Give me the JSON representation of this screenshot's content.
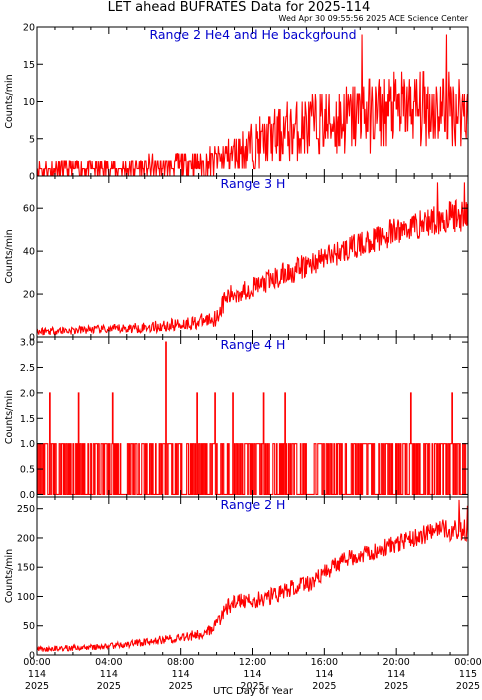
{
  "header": {
    "title": "LET ahead BUFRATES Data for 2025-114",
    "timestamp": "Wed Apr 30 09:55:56 2025 ACE Science Center"
  },
  "colors": {
    "trace": "#ff0000",
    "panel_label": "#0000cc",
    "axes": "#000000"
  },
  "x_axis": {
    "label": "UTC Day of Year",
    "ticks": [
      {
        "time": "00:00",
        "doy": "114",
        "year": "2025",
        "hour": 0
      },
      {
        "time": "04:00",
        "doy": "114",
        "year": "2025",
        "hour": 4
      },
      {
        "time": "08:00",
        "doy": "114",
        "year": "2025",
        "hour": 8
      },
      {
        "time": "12:00",
        "doy": "114",
        "year": "2025",
        "hour": 12
      },
      {
        "time": "16:00",
        "doy": "114",
        "year": "2025",
        "hour": 16
      },
      {
        "time": "20:00",
        "doy": "114",
        "year": "2025",
        "hour": 20
      },
      {
        "time": "00:00",
        "doy": "115",
        "year": "2025",
        "hour": 24
      }
    ]
  },
  "chart_data": [
    {
      "type": "line",
      "panel_label": "Range 2 He4 and He background",
      "ylabel": "Counts/min",
      "ylim": [
        0,
        20
      ],
      "y_ticks": [
        "0",
        "5",
        "10",
        "15",
        "20"
      ],
      "y_tick_values": [
        0,
        5,
        10,
        15,
        20
      ],
      "xlim_hours": [
        0,
        24
      ],
      "series": [
        {
          "x_hours": [
            0,
            1,
            2,
            3,
            4,
            5,
            6,
            7,
            8,
            9,
            10,
            11,
            12,
            13,
            14,
            15,
            16,
            17,
            18,
            19,
            20,
            21,
            22,
            23,
            24
          ],
          "level": [
            0.8,
            0.9,
            0.9,
            1.0,
            1.0,
            1.0,
            1.2,
            1.3,
            1.5,
            1.6,
            2.0,
            3.0,
            4.0,
            5.0,
            6.0,
            6.5,
            7.0,
            7.5,
            8.0,
            8.5,
            9.0,
            9.0,
            9.0,
            9.0,
            9.0
          ],
          "spread": [
            1.2,
            1.2,
            1.2,
            1.2,
            1.2,
            1.2,
            1.3,
            1.3,
            1.5,
            1.6,
            2.0,
            2.5,
            3.0,
            3.5,
            4.0,
            4.5,
            4.5,
            5.0,
            5.0,
            5.0,
            5.0,
            5.0,
            5.0,
            5.0,
            5.0
          ],
          "integer": true,
          "peaks": [
            [
              18.1,
              19
            ],
            [
              22.8,
              19
            ]
          ]
        }
      ]
    },
    {
      "type": "line",
      "panel_label": "Range 3 H",
      "ylabel": "Counts/min",
      "ylim": [
        0,
        75
      ],
      "y_ticks": [
        "0",
        "20",
        "40",
        "60"
      ],
      "y_tick_values": [
        0,
        20,
        40,
        60
      ],
      "xlim_hours": [
        0,
        24
      ],
      "series": [
        {
          "x_hours": [
            0,
            1,
            2,
            3,
            4,
            5,
            6,
            7,
            8,
            9,
            10,
            10.5,
            11,
            12,
            13,
            14,
            15,
            16,
            17,
            18,
            19,
            20,
            21,
            22,
            23,
            24
          ],
          "level": [
            2.5,
            3,
            3,
            3.5,
            3.5,
            4,
            4.5,
            5,
            6,
            7,
            9,
            18,
            20,
            23,
            26,
            30,
            33,
            37,
            40,
            43,
            46,
            49,
            52,
            54,
            56,
            57
          ],
          "spread": [
            2,
            2,
            2,
            2,
            2,
            2.5,
            2.5,
            3,
            3,
            3.5,
            4,
            5,
            5,
            5,
            6,
            6,
            6,
            6,
            6,
            6,
            6,
            7,
            7,
            7,
            8,
            8
          ],
          "integer": false,
          "peaks": [
            [
              22.3,
              72
            ],
            [
              23.8,
              72
            ]
          ]
        }
      ]
    },
    {
      "type": "line",
      "panel_label": "Range 4 H",
      "ylabel": "Counts/min",
      "ylim": [
        -0.05,
        3.1
      ],
      "y_ticks": [
        "0.0",
        "0.5",
        "1.0",
        "1.5",
        "2.0",
        "2.5",
        "3.0"
      ],
      "y_tick_values": [
        0,
        0.5,
        1.0,
        1.5,
        2.0,
        2.5,
        3.0
      ],
      "xlim_hours": [
        0,
        24
      ],
      "series": [
        {
          "kind": "binary",
          "ones_fraction": 0.45,
          "spikes": [
            [
              0.7,
              2
            ],
            [
              2.3,
              2
            ],
            [
              4.2,
              2
            ],
            [
              7.15,
              3
            ],
            [
              8.9,
              2
            ],
            [
              9.9,
              2
            ],
            [
              10.9,
              2
            ],
            [
              12.6,
              2
            ],
            [
              13.8,
              2
            ],
            [
              20.8,
              2
            ],
            [
              23.1,
              2
            ]
          ]
        }
      ]
    },
    {
      "type": "line",
      "panel_label": "Range 2 H",
      "ylabel": "Counts/min",
      "ylim": [
        0,
        270
      ],
      "y_ticks": [
        "0",
        "50",
        "100",
        "150",
        "200",
        "250"
      ],
      "y_tick_values": [
        0,
        50,
        100,
        150,
        200,
        250
      ],
      "xlim_hours": [
        0,
        24
      ],
      "series": [
        {
          "x_hours": [
            0,
            1,
            2,
            3,
            4,
            5,
            6,
            7,
            8,
            9,
            9.5,
            10,
            10.5,
            11,
            12,
            13,
            14,
            15,
            16,
            17,
            18,
            19,
            20,
            21,
            22,
            23,
            24
          ],
          "level": [
            10,
            11,
            12,
            13,
            15,
            18,
            22,
            26,
            30,
            35,
            42,
            50,
            80,
            90,
            92,
            100,
            112,
            120,
            140,
            160,
            172,
            180,
            190,
            200,
            210,
            215,
            218
          ],
          "spread": [
            5,
            5,
            5,
            5,
            5,
            6,
            7,
            8,
            8,
            10,
            10,
            12,
            14,
            14,
            14,
            14,
            15,
            15,
            15,
            15,
            15,
            15,
            15,
            15,
            18,
            20,
            25
          ],
          "integer": false,
          "peaks": [
            [
              23.5,
              265
            ],
            [
              23.95,
              255
            ]
          ]
        }
      ]
    }
  ]
}
